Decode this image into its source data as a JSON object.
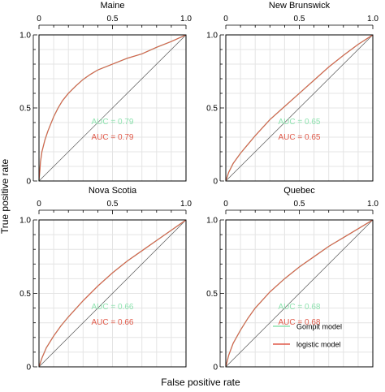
{
  "chart_data": {
    "type": "line",
    "xlabel": "False positive rate",
    "ylabel": "True positive rate",
    "xlim": [
      0,
      1
    ],
    "ylim": [
      0,
      1
    ],
    "ticks": [
      0,
      0.5,
      1
    ],
    "tick_labels": [
      "0",
      "0.5",
      "1.0"
    ],
    "grid": true,
    "legend_position": "bottom-right",
    "legend": [
      {
        "name": "Gompit model",
        "color": "#8fe3b0"
      },
      {
        "name": "logistic model",
        "color": "#e05a4a"
      }
    ],
    "panels": [
      {
        "title": "Maine",
        "auc": [
          {
            "model": "Gompit model",
            "text": "AUC = 0.79"
          },
          {
            "model": "logistic model",
            "text": "AUC = 0.79"
          }
        ],
        "roc": {
          "x": [
            0,
            0.005,
            0.01,
            0.02,
            0.04,
            0.06,
            0.08,
            0.1,
            0.13,
            0.16,
            0.2,
            0.25,
            0.3,
            0.35,
            0.4,
            0.5,
            0.6,
            0.7,
            0.8,
            0.9,
            1.0
          ],
          "y": [
            0,
            0.06,
            0.13,
            0.2,
            0.28,
            0.34,
            0.39,
            0.44,
            0.5,
            0.55,
            0.6,
            0.65,
            0.695,
            0.73,
            0.76,
            0.8,
            0.84,
            0.87,
            0.915,
            0.955,
            1.0
          ]
        }
      },
      {
        "title": "New Brunswick",
        "auc": [
          {
            "model": "Gompit model",
            "text": "AUC = 0.65"
          },
          {
            "model": "logistic model",
            "text": "AUC = 0.65"
          }
        ],
        "roc": {
          "x": [
            0,
            0.02,
            0.05,
            0.1,
            0.15,
            0.2,
            0.3,
            0.4,
            0.5,
            0.6,
            0.7,
            0.8,
            0.9,
            1.0
          ],
          "y": [
            0,
            0.06,
            0.12,
            0.19,
            0.25,
            0.31,
            0.42,
            0.51,
            0.6,
            0.69,
            0.78,
            0.86,
            0.935,
            1.0
          ]
        }
      },
      {
        "title": "Nova Scotia",
        "auc": [
          {
            "model": "Gompit model",
            "text": "AUC = 0.66"
          },
          {
            "model": "logistic model",
            "text": "AUC = 0.66"
          }
        ],
        "roc": {
          "x": [
            0,
            0.02,
            0.05,
            0.1,
            0.15,
            0.2,
            0.3,
            0.4,
            0.5,
            0.6,
            0.7,
            0.8,
            0.9,
            1.0
          ],
          "y": [
            0,
            0.06,
            0.13,
            0.21,
            0.28,
            0.34,
            0.45,
            0.55,
            0.64,
            0.72,
            0.79,
            0.86,
            0.93,
            1.0
          ]
        }
      },
      {
        "title": "Quebec",
        "auc": [
          {
            "model": "Gompit model",
            "text": "AUC = 0.68"
          },
          {
            "model": "logistic model",
            "text": "AUC = 0.68"
          }
        ],
        "roc": {
          "x": [
            0,
            0.02,
            0.05,
            0.1,
            0.15,
            0.2,
            0.3,
            0.4,
            0.5,
            0.6,
            0.7,
            0.8,
            0.9,
            1.0
          ],
          "y": [
            0,
            0.08,
            0.16,
            0.25,
            0.33,
            0.4,
            0.51,
            0.6,
            0.68,
            0.75,
            0.82,
            0.88,
            0.94,
            1.0
          ]
        }
      }
    ]
  }
}
